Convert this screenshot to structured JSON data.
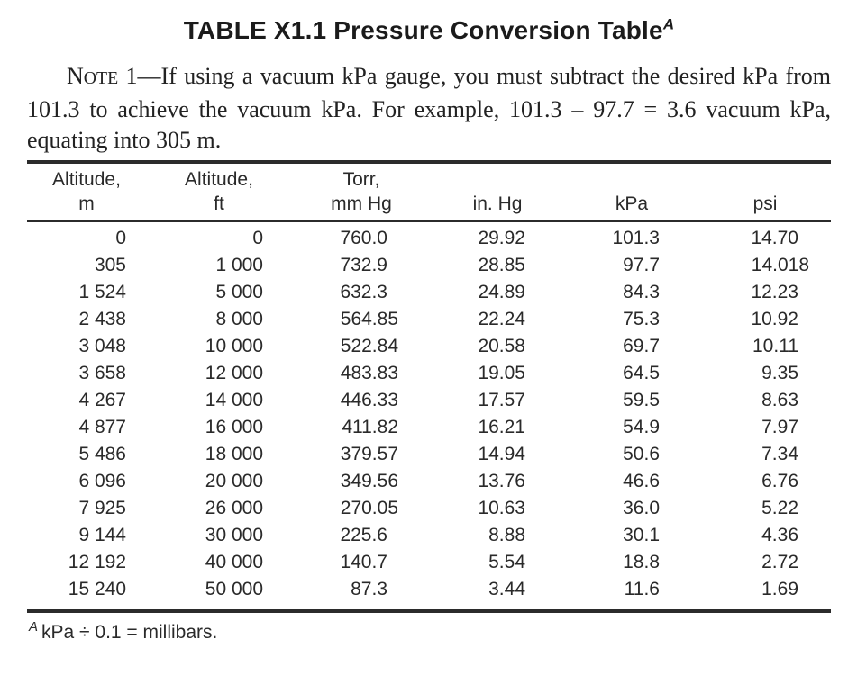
{
  "title": {
    "text": "TABLE X1.1 Pressure Conversion Table",
    "superscript": "A"
  },
  "note": {
    "label_initial": "N",
    "label_smallcaps": "OTE",
    "label_rest": " 1—",
    "text": "If using a vacuum kPa gauge, you must subtract the desired kPa from 101.3 to achieve the vacuum kPa. For example, 101.3 – 97.7 = 3.6 vacuum kPa, equating into 305 m."
  },
  "table": {
    "columns": [
      {
        "line1": "Altitude,",
        "line2": "m"
      },
      {
        "line1": "Altitude,",
        "line2": "ft"
      },
      {
        "line1": "Torr,",
        "line2": "mm Hg"
      },
      {
        "line1": "",
        "line2": "in. Hg"
      },
      {
        "line1": "",
        "line2": "kPa"
      },
      {
        "line1": "",
        "line2": "psi"
      }
    ],
    "rows": [
      [
        "0",
        "0",
        "760.0",
        "29.92",
        "101.3",
        "14.70"
      ],
      [
        "305",
        "1 000",
        "732.9",
        "28.85",
        "97.7",
        "14.018"
      ],
      [
        "1 524",
        "5 000",
        "632.3",
        "24.89",
        "84.3",
        "12.23"
      ],
      [
        "2 438",
        "8 000",
        "564.85",
        "22.24",
        "75.3",
        "10.92"
      ],
      [
        "3 048",
        "10 000",
        "522.84",
        "20.58",
        "69.7",
        "10.11"
      ],
      [
        "3 658",
        "12 000",
        "483.83",
        "19.05",
        "64.5",
        "9.35"
      ],
      [
        "4 267",
        "14 000",
        "446.33",
        "17.57",
        "59.5",
        "8.63"
      ],
      [
        "4 877",
        "16 000",
        "411.82",
        "16.21",
        "54.9",
        "7.97"
      ],
      [
        "5 486",
        "18 000",
        "379.57",
        "14.94",
        "50.6",
        "7.34"
      ],
      [
        "6 096",
        "20 000",
        "349.56",
        "13.76",
        "46.6",
        "6.76"
      ],
      [
        "7 925",
        "26 000",
        "270.05",
        "10.63",
        "36.0",
        "5.22"
      ],
      [
        "9 144",
        "30 000",
        "225.6",
        "8.88",
        "30.1",
        "4.36"
      ],
      [
        "12 192",
        "40 000",
        "140.7",
        "5.54",
        "18.8",
        "2.72"
      ],
      [
        "15 240",
        "50 000",
        "87.3",
        "3.44",
        "11.6",
        "1.69"
      ]
    ]
  },
  "footnote": {
    "marker": "A",
    "text": "kPa ÷ 0.1 = millibars."
  }
}
